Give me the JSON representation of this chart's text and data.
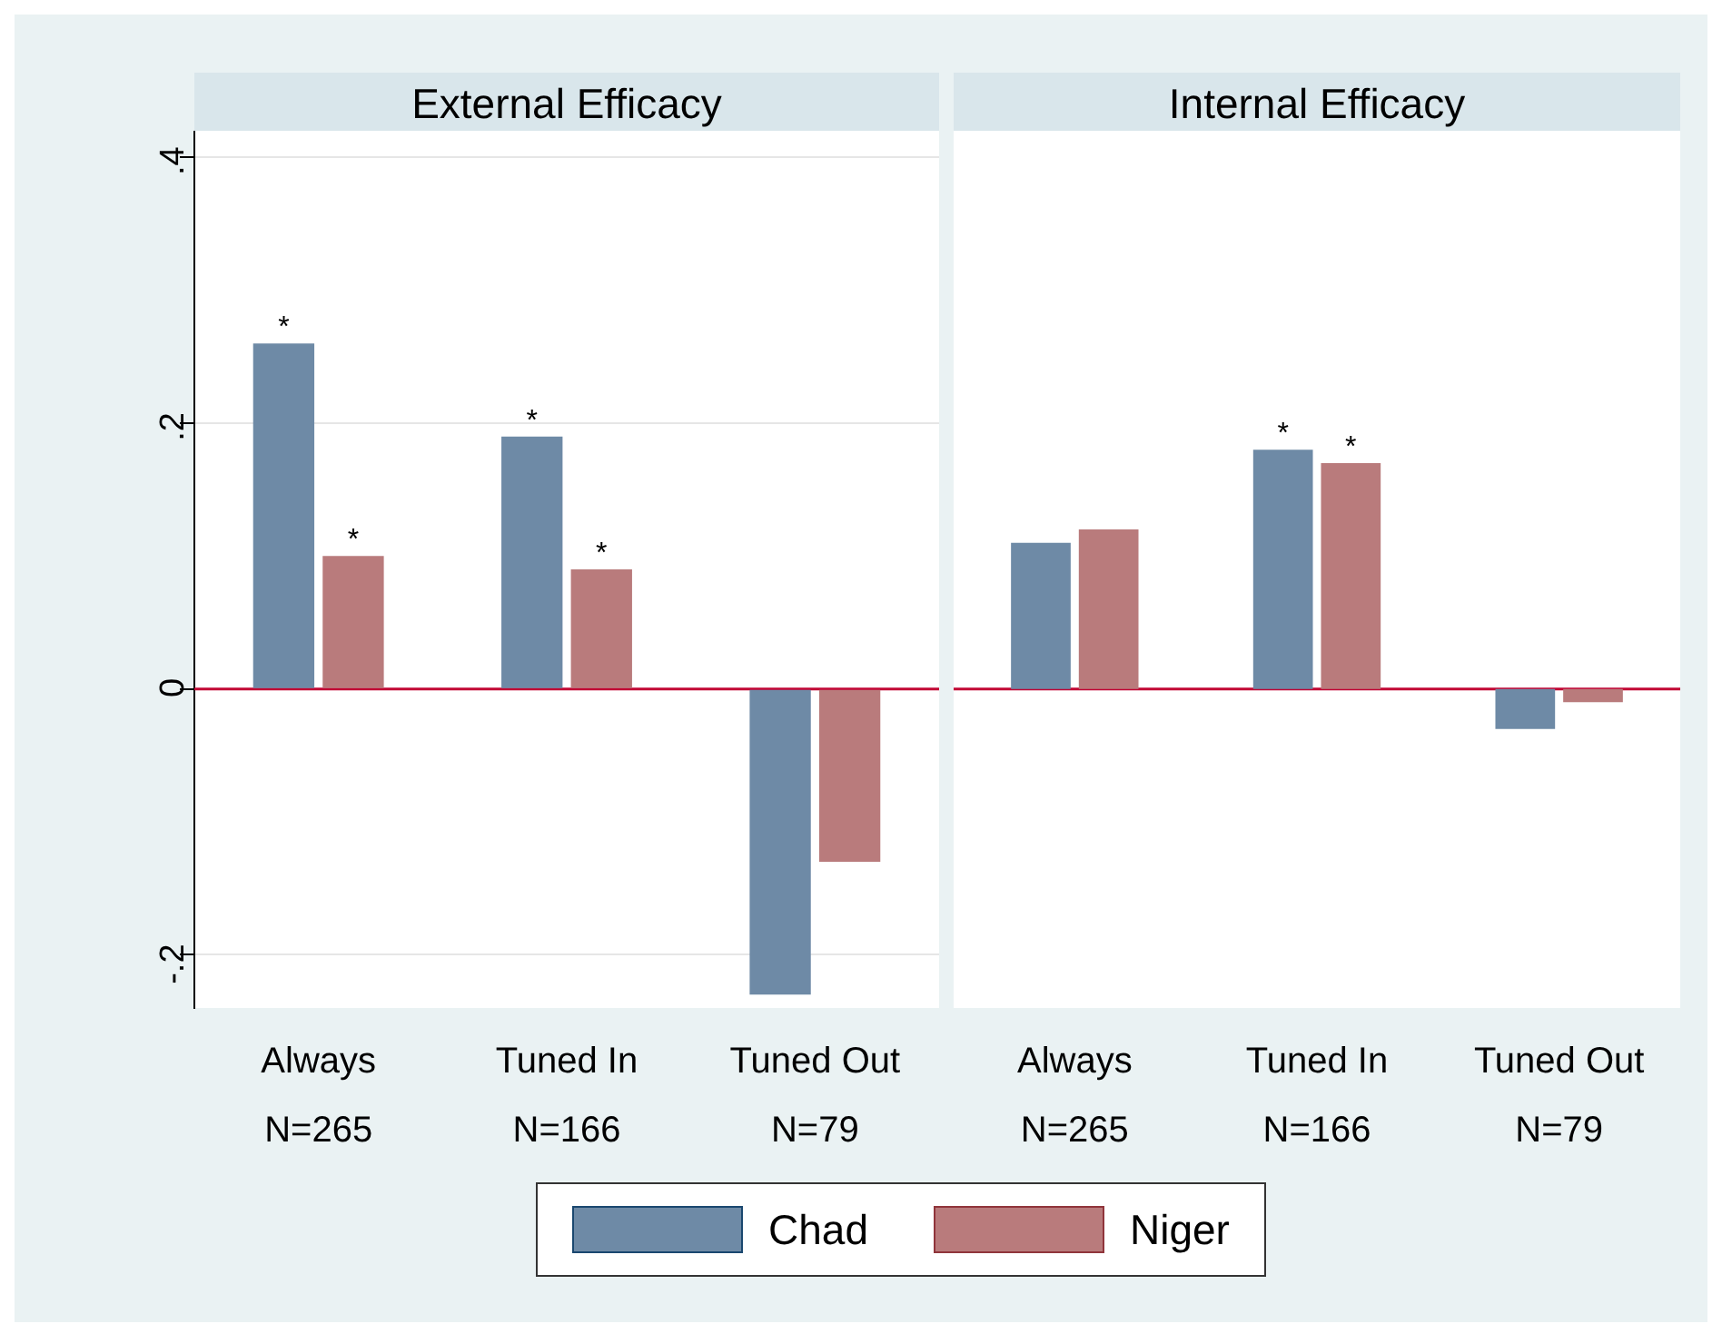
{
  "chart_data": [
    {
      "type": "bar",
      "title": "External Efficacy",
      "categories": [
        "Always\nN=265",
        "Tuned In\nN=166",
        "Tuned Out\nN=79"
      ],
      "series": [
        {
          "name": "Chad",
          "color": "#6e8aa6",
          "values": [
            0.26,
            0.19,
            -0.23
          ]
        },
        {
          "name": "Niger",
          "color": "#b97b7c",
          "values": [
            0.1,
            0.09,
            -0.13
          ]
        }
      ],
      "ylim": [
        -0.24,
        0.42
      ],
      "yticks": [
        {
          "value": -0.2,
          "label": "-.2"
        },
        0,
        {
          "value": 0.2,
          "label": ".2"
        },
        {
          "value": 0.4,
          "label": ".4"
        }
      ],
      "grid": "y",
      "legend": "bottom",
      "tick_labels": "xy",
      "ref_lines": [
        {
          "axis": "y",
          "value": 0,
          "color": "#c10534"
        }
      ],
      "annotations": [
        {
          "text": "*",
          "x": "Always\nN=265",
          "y": 0.26
        },
        {
          "text": "*",
          "x": "Always\nN=265",
          "y": 0.1
        },
        {
          "text": "*",
          "x": "Tuned In\nN=166",
          "y": 0.19
        },
        {
          "text": "*",
          "x": "Tuned In\nN=166",
          "y": 0.09
        }
      ]
    },
    {
      "type": "bar",
      "title": "Internal Efficacy",
      "categories": [
        "Always\nN=265",
        "Tuned In\nN=166",
        "Tuned Out\nN=79"
      ],
      "series": [
        {
          "color": "#6e8aa6",
          "values": [
            0.11,
            0.18,
            -0.03
          ]
        },
        {
          "color": "#b97b7c",
          "values": [
            0.12,
            0.17,
            -0.01
          ]
        }
      ],
      "ylim": [
        -0.24,
        0.42
      ],
      "grid": "y",
      "tick_labels": "x",
      "ref_lines": [
        {
          "axis": "y",
          "value": 0,
          "color": "#c10534"
        }
      ],
      "annotations": [
        {
          "text": "*",
          "x": "Tuned In\nN=166",
          "y": 0.18
        },
        {
          "text": "*",
          "x": "Tuned In\nN=166",
          "y": 0.17
        }
      ]
    }
  ]
}
